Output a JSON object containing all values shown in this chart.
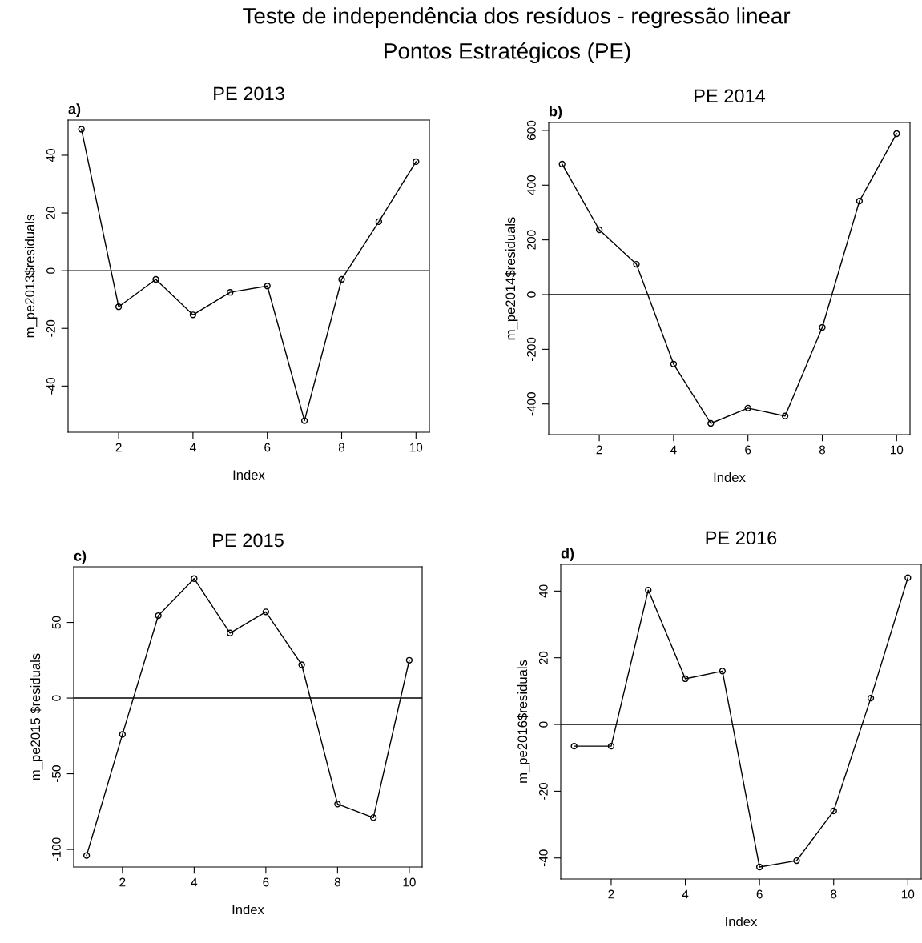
{
  "chart_data": [
    {
      "type": "other",
      "title": "Teste de independência dos resíduos - regressão linear",
      "subtitle": "Pontos Estratégicos (PE)"
    },
    {
      "type": "line",
      "title": "PE 2013",
      "xlabel": "Index",
      "ylabel": "m_pe2013$residuals",
      "annotations": [
        "a)"
      ],
      "marker": "circle",
      "line_style": "solid",
      "grid": false,
      "x": [
        1,
        2,
        3,
        4,
        5,
        6,
        7,
        8,
        9,
        10
      ],
      "series": [
        {
          "color": "#000000",
          "values": [
            49,
            -12.5,
            -3,
            -15.3,
            -7.5,
            -5.3,
            -52,
            -3,
            17,
            37.8
          ]
        }
      ],
      "xlim": [
        0.64,
        10.36
      ],
      "xticks": [
        2,
        4,
        6,
        8,
        10
      ],
      "ylim": [
        -56,
        52.2
      ],
      "yticks": [
        -40,
        -20,
        0,
        20,
        40
      ],
      "ref_lines": [
        {
          "axis": "y",
          "value": 0,
          "color": "#000000"
        }
      ]
    },
    {
      "type": "line",
      "title": "PE 2014",
      "xlabel": "Index",
      "ylabel": "m_pe2014$residuals",
      "annotations": [
        "b)"
      ],
      "marker": "circle",
      "line_style": "solid",
      "grid": false,
      "x": [
        1,
        2,
        3,
        4,
        5,
        6,
        7,
        8,
        9,
        10
      ],
      "series": [
        {
          "color": "#000000",
          "values": [
            477,
            237,
            111,
            -254,
            -471,
            -415,
            -444,
            -120,
            342,
            588
          ]
        }
      ],
      "xlim": [
        0.64,
        10.36
      ],
      "xticks": [
        2,
        4,
        6,
        8,
        10
      ],
      "ylim": [
        -512,
        629
      ],
      "yticks": [
        -400,
        -200,
        0,
        200,
        400,
        600
      ],
      "ref_lines": [
        {
          "axis": "y",
          "value": 0,
          "color": "#000000"
        }
      ]
    },
    {
      "type": "line",
      "title": "PE 2015",
      "xlabel": "Index",
      "ylabel": "m_pe2015 $residuals",
      "annotations": [
        "c)"
      ],
      "marker": "circle",
      "line_style": "solid",
      "grid": false,
      "x": [
        1,
        2,
        3,
        4,
        5,
        6,
        7,
        8,
        9,
        10
      ],
      "series": [
        {
          "color": "#000000",
          "values": [
            -104,
            -24,
            54.5,
            79,
            43,
            57,
            22,
            -70,
            -79,
            25
          ]
        }
      ],
      "xlim": [
        0.64,
        10.36
      ],
      "xticks": [
        2,
        4,
        6,
        8,
        10
      ],
      "ylim": [
        -111.6,
        86.8
      ],
      "yticks": [
        -100,
        -50,
        0,
        50
      ],
      "ref_lines": [
        {
          "axis": "y",
          "value": 0,
          "color": "#000000"
        }
      ]
    },
    {
      "type": "line",
      "title": "PE 2016",
      "xlabel": "Index",
      "ylabel": "m_pe2016$residuals",
      "annotations": [
        "d)"
      ],
      "marker": "circle",
      "line_style": "solid",
      "grid": false,
      "x": [
        1,
        2,
        3,
        4,
        5,
        6,
        7,
        8,
        9,
        10
      ],
      "series": [
        {
          "color": "#000000",
          "values": [
            -6.5,
            -6.5,
            40.3,
            13.7,
            16,
            -42.7,
            -40.8,
            -25.9,
            7.9,
            44
          ]
        }
      ],
      "xlim": [
        0.64,
        10.36
      ],
      "xticks": [
        2,
        4,
        6,
        8,
        10
      ],
      "ylim": [
        -46.3,
        48
      ],
      "yticks": [
        -40,
        -20,
        0,
        20,
        40
      ],
      "ref_lines": [
        {
          "axis": "y",
          "value": 0,
          "color": "#000000"
        }
      ]
    }
  ]
}
